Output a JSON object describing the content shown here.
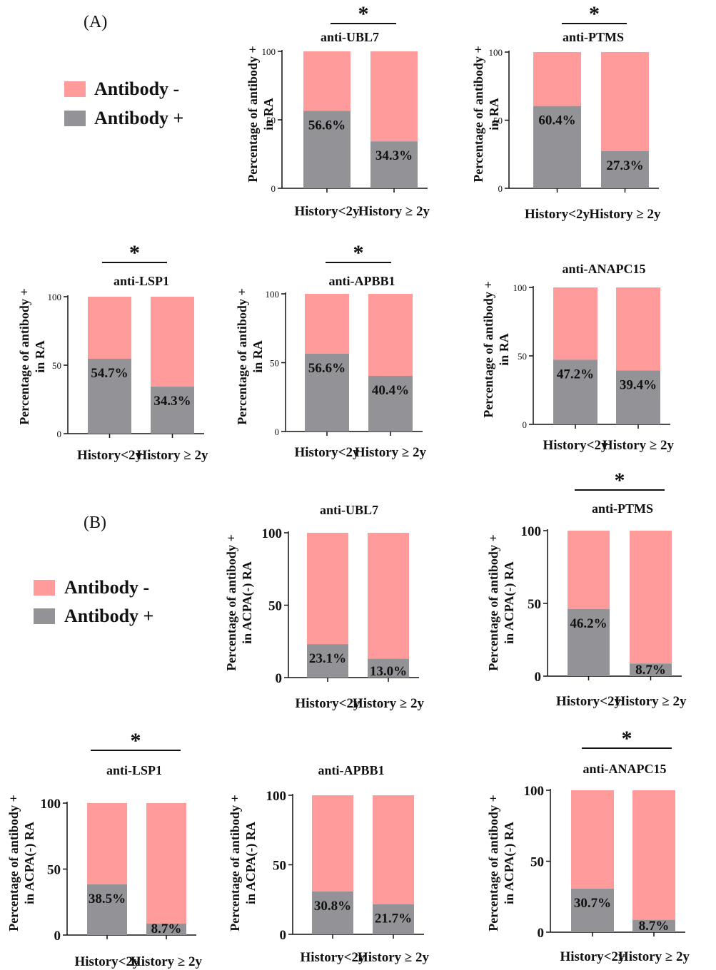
{
  "colors": {
    "negative": "#FF9B9B",
    "positive": "#939397"
  },
  "panels": [
    {
      "label": "(A)",
      "legend": [
        "Antibody -",
        "Antibody +"
      ]
    },
    {
      "label": "(B)",
      "legend": [
        "Antibody -",
        "Antibody +"
      ]
    }
  ],
  "chart_data": [
    {
      "type": "bar",
      "stacked": true,
      "title": "anti-UBL7",
      "ylabel": "Percentage of antibody + in RA",
      "categories": [
        "History<2y",
        "History ≥ 2y"
      ],
      "values": [
        56.6,
        34.3
      ],
      "labels": [
        "56.6%",
        "34.3%"
      ],
      "ylim": [
        0,
        100
      ],
      "yticks": [
        0,
        50,
        100
      ],
      "significance": "*"
    },
    {
      "type": "bar",
      "stacked": true,
      "title": "anti-PTMS",
      "ylabel": "Percentage of antibody + in RA",
      "categories": [
        "History<2y",
        "History ≥ 2y"
      ],
      "values": [
        60.4,
        27.3
      ],
      "labels": [
        "60.4%",
        "27.3%"
      ],
      "ylim": [
        0,
        100
      ],
      "yticks": [
        0,
        50,
        100
      ],
      "significance": "*"
    },
    {
      "type": "bar",
      "stacked": true,
      "title": "anti-LSP1",
      "ylabel": "Percentage of antibody + in RA",
      "categories": [
        "History<2y",
        "History ≥ 2y"
      ],
      "values": [
        54.7,
        34.3
      ],
      "labels": [
        "54.7%",
        "34.3%"
      ],
      "ylim": [
        0,
        100
      ],
      "yticks": [
        0,
        50,
        100
      ],
      "significance": "*"
    },
    {
      "type": "bar",
      "stacked": true,
      "title": "anti-APBB1",
      "ylabel": "Percentage of antibody + in RA",
      "categories": [
        "History<2y",
        "History ≥ 2y"
      ],
      "values": [
        56.6,
        40.4
      ],
      "labels": [
        "56.6%",
        "40.4%"
      ],
      "ylim": [
        0,
        100
      ],
      "yticks": [
        0,
        50,
        100
      ],
      "significance": "*"
    },
    {
      "type": "bar",
      "stacked": true,
      "title": "anti-ANAPC15",
      "ylabel": "Percentage of antibody + in RA",
      "categories": [
        "History<2y",
        "History ≥ 2y"
      ],
      "values": [
        47.2,
        39.4
      ],
      "labels": [
        "47.2%",
        "39.4%"
      ],
      "ylim": [
        0,
        100
      ],
      "yticks": [
        0,
        50,
        100
      ],
      "significance": ""
    },
    {
      "type": "bar",
      "stacked": true,
      "title": "anti-UBL7",
      "ylabel": "Percentage of antibody + in ACPA(-) RA",
      "categories": [
        "History<2y",
        "History ≥ 2y"
      ],
      "values": [
        23.1,
        13.0
      ],
      "labels": [
        "23.1%",
        "13.0%"
      ],
      "ylim": [
        0,
        100
      ],
      "yticks": [
        0,
        50,
        100
      ],
      "significance": ""
    },
    {
      "type": "bar",
      "stacked": true,
      "title": "anti-PTMS",
      "ylabel": "Percentage of antibody + in ACPA(-) RA",
      "categories": [
        "History<2y",
        "History ≥ 2y"
      ],
      "values": [
        46.2,
        8.7
      ],
      "labels": [
        "46.2%",
        "8.7%"
      ],
      "ylim": [
        0,
        100
      ],
      "yticks": [
        0,
        50,
        100
      ],
      "significance": "*"
    },
    {
      "type": "bar",
      "stacked": true,
      "title": "anti-LSP1",
      "ylabel": "Percentage of antibody + in ACPA(-) RA",
      "categories": [
        "History<2y",
        "History ≥ 2y"
      ],
      "values": [
        38.5,
        8.7
      ],
      "labels": [
        "38.5%",
        "8.7%"
      ],
      "ylim": [
        0,
        100
      ],
      "yticks": [
        0,
        50,
        100
      ],
      "significance": "*"
    },
    {
      "type": "bar",
      "stacked": true,
      "title": "anti-APBB1",
      "ylabel": "Percentage of antibody + in ACPA(-) RA",
      "categories": [
        "History<2y",
        "History ≥ 2y"
      ],
      "values": [
        30.8,
        21.7
      ],
      "labels": [
        "30.8%",
        "21.7%"
      ],
      "ylim": [
        0,
        100
      ],
      "yticks": [
        0,
        50,
        100
      ],
      "significance": ""
    },
    {
      "type": "bar",
      "stacked": true,
      "title": "anti-ANAPC15",
      "ylabel": "Percentage of antibody + in ACPA(-) RA",
      "categories": [
        "History<2y",
        "History ≥ 2y"
      ],
      "values": [
        30.7,
        8.7
      ],
      "labels": [
        "30.7%",
        "8.7%"
      ],
      "ylim": [
        0,
        100
      ],
      "yticks": [
        0,
        50,
        100
      ],
      "significance": "*"
    }
  ]
}
